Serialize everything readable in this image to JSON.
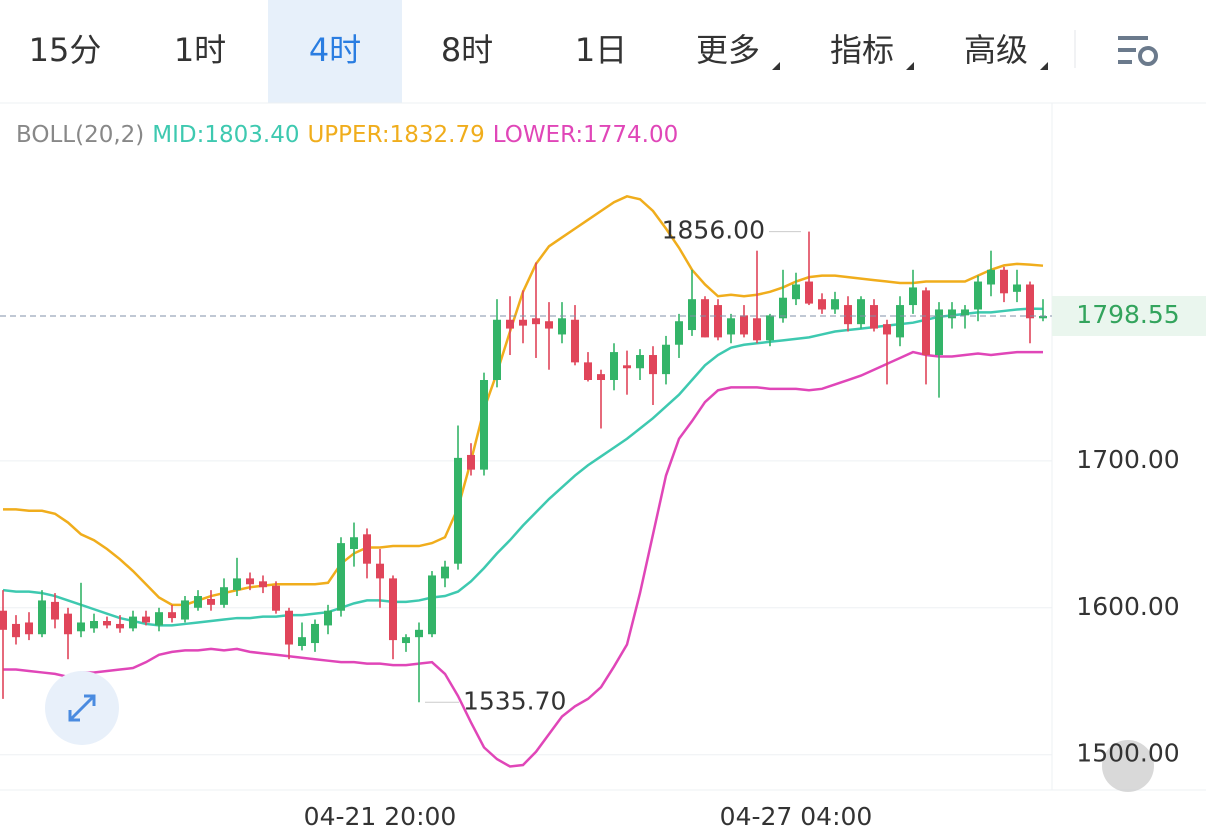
{
  "toolbar": {
    "tabs": [
      "15分",
      "1时",
      "4时",
      "8时",
      "1日",
      "更多",
      "指标",
      "高级"
    ],
    "active": 2
  },
  "chart_data": {
    "type": "candlestick",
    "indicator": "BOLL(20,2)",
    "up_color": "#33b468",
    "down_color": "#e0455a",
    "categories": [
      null,
      null,
      null,
      null,
      null,
      null,
      null,
      null,
      null,
      null,
      null,
      null,
      null,
      null,
      null,
      null,
      null,
      null,
      null,
      null,
      null,
      null,
      null,
      null,
      null,
      null,
      null,
      null,
      null,
      "04-21 20:00",
      null,
      null,
      null,
      null,
      null,
      null,
      null,
      null,
      null,
      null,
      null,
      null,
      null,
      null,
      null,
      null,
      null,
      null,
      null,
      null,
      null,
      null,
      null,
      null,
      null,
      null,
      null,
      null,
      null,
      null,
      null,
      "04-27 04:00",
      null,
      null,
      null,
      null,
      null,
      null,
      null,
      null,
      null,
      null,
      null,
      null,
      null,
      null,
      null,
      null,
      null,
      null,
      null
    ],
    "ohlc": [
      [
        1598,
        1612,
        1538,
        1585
      ],
      [
        1589,
        1595,
        1575,
        1580
      ],
      [
        1590,
        1597,
        1578,
        1582
      ],
      [
        1582,
        1612,
        1580,
        1605
      ],
      [
        1604,
        1610,
        1586,
        1592
      ],
      [
        1596,
        1600,
        1565,
        1582
      ],
      [
        1584,
        1617,
        1580,
        1590
      ],
      [
        1586,
        1596,
        1583,
        1591
      ],
      [
        1591,
        1594,
        1586,
        1588
      ],
      [
        1589,
        1595,
        1583,
        1586
      ],
      [
        1586,
        1598,
        1584,
        1594
      ],
      [
        1594,
        1598,
        1588,
        1590
      ],
      [
        1588,
        1600,
        1584,
        1597
      ],
      [
        1597,
        1602,
        1590,
        1593
      ],
      [
        1592,
        1608,
        1590,
        1605
      ],
      [
        1600,
        1612,
        1598,
        1608
      ],
      [
        1606,
        1612,
        1598,
        1602
      ],
      [
        1602,
        1620,
        1600,
        1614
      ],
      [
        1612,
        1634,
        1608,
        1620
      ],
      [
        1620,
        1624,
        1612,
        1616
      ],
      [
        1618,
        1622,
        1610,
        1614
      ],
      [
        1615,
        1618,
        1596,
        1598
      ],
      [
        1598,
        1600,
        1565,
        1575
      ],
      [
        1574,
        1590,
        1571,
        1580
      ],
      [
        1576,
        1592,
        1570,
        1589
      ],
      [
        1588,
        1602,
        1582,
        1598
      ],
      [
        1598,
        1648,
        1594,
        1644
      ],
      [
        1640,
        1658,
        1628,
        1648
      ],
      [
        1650,
        1654,
        1620,
        1630
      ],
      [
        1630,
        1640,
        1600,
        1620
      ],
      [
        1620,
        1622,
        1565,
        1578
      ],
      [
        1576,
        1582,
        1570,
        1580
      ],
      [
        1580,
        1590,
        1535.7,
        1585
      ],
      [
        1582,
        1625,
        1580,
        1622
      ],
      [
        1620,
        1632,
        1614,
        1628
      ],
      [
        1630,
        1724,
        1626,
        1702
      ],
      [
        1704,
        1712,
        1690,
        1694
      ],
      [
        1694,
        1760,
        1690,
        1755
      ],
      [
        1755,
        1810,
        1750,
        1796
      ],
      [
        1796,
        1812,
        1772,
        1790
      ],
      [
        1796,
        1816,
        1780,
        1792
      ],
      [
        1797,
        1835,
        1770,
        1793
      ],
      [
        1795,
        1808,
        1762,
        1790
      ],
      [
        1786,
        1808,
        1780,
        1797
      ],
      [
        1796,
        1806,
        1765,
        1767
      ],
      [
        1767,
        1774,
        1754,
        1755
      ],
      [
        1759,
        1762,
        1722,
        1755
      ],
      [
        1755,
        1780,
        1748,
        1774
      ],
      [
        1765,
        1775,
        1745,
        1763
      ],
      [
        1763,
        1776,
        1755,
        1772
      ],
      [
        1772,
        1778,
        1738,
        1759
      ],
      [
        1759,
        1785,
        1752,
        1779
      ],
      [
        1779,
        1800,
        1770,
        1795
      ],
      [
        1789,
        1830,
        1785,
        1810
      ],
      [
        1810,
        1812,
        1784,
        1784
      ],
      [
        1806,
        1810,
        1782,
        1784
      ],
      [
        1786,
        1800,
        1780,
        1797
      ],
      [
        1799,
        1806,
        1784,
        1786
      ],
      [
        1797,
        1843,
        1780,
        1782
      ],
      [
        1782,
        1800,
        1778,
        1799
      ],
      [
        1797,
        1830,
        1794,
        1811
      ],
      [
        1810,
        1828,
        1806,
        1820
      ],
      [
        1822,
        1856,
        1806,
        1807
      ],
      [
        1810,
        1814,
        1800,
        1803
      ],
      [
        1803,
        1815,
        1800,
        1810
      ],
      [
        1806,
        1812,
        1788,
        1793
      ],
      [
        1793,
        1812,
        1790,
        1810
      ],
      [
        1806,
        1810,
        1788,
        1790
      ],
      [
        1793,
        1796,
        1752,
        1786
      ],
      [
        1784,
        1812,
        1778,
        1806
      ],
      [
        1806,
        1830,
        1800,
        1818
      ],
      [
        1816,
        1818,
        1752,
        1772
      ],
      [
        1772,
        1808,
        1743,
        1803
      ],
      [
        1797,
        1808,
        1790,
        1803
      ],
      [
        1799,
        1806,
        1790,
        1803
      ],
      [
        1803,
        1826,
        1795,
        1822
      ],
      [
        1820,
        1843,
        1812,
        1830
      ],
      [
        1830,
        1832,
        1808,
        1814
      ],
      [
        1815,
        1830,
        1808,
        1820
      ],
      [
        1820,
        1822,
        1780,
        1797
      ],
      [
        1797,
        1810,
        1795,
        1798.55
      ]
    ],
    "series": [
      {
        "name": "MID:1803.40",
        "color": "#3ec9b0",
        "values": [
          1612,
          1611,
          1611,
          1610,
          1608,
          1605,
          1602,
          1599,
          1596,
          1593,
          1591,
          1589,
          1588,
          1588,
          1589,
          1590,
          1591,
          1592,
          1593,
          1593,
          1594,
          1594,
          1595,
          1595,
          1596,
          1597,
          1600,
          1603,
          1605,
          1605,
          1604,
          1604,
          1605,
          1607,
          1608,
          1611,
          1618,
          1627,
          1637,
          1646,
          1656,
          1665,
          1674,
          1682,
          1690,
          1697,
          1703,
          1709,
          1715,
          1722,
          1729,
          1737,
          1745,
          1755,
          1765,
          1772,
          1777,
          1779,
          1780,
          1781,
          1782,
          1783,
          1784,
          1786,
          1788,
          1789,
          1790,
          1791,
          1792,
          1793,
          1794,
          1796,
          1798,
          1799,
          1800,
          1801,
          1801,
          1802,
          1803,
          1803.6,
          1803.4
        ]
      },
      {
        "name": "UPPER:1832.79",
        "color": "#f0ad1c",
        "values": [
          1667,
          1667,
          1666,
          1666,
          1664,
          1658,
          1650,
          1646,
          1640,
          1633,
          1625,
          1616,
          1607,
          1602,
          1602,
          1605,
          1608,
          1610,
          1612,
          1614,
          1615,
          1616,
          1616,
          1616,
          1616,
          1617,
          1630,
          1637,
          1641,
          1641,
          1642,
          1642,
          1642,
          1644,
          1648,
          1668,
          1700,
          1735,
          1760,
          1788,
          1815,
          1834,
          1846,
          1852,
          1858,
          1864,
          1870,
          1876,
          1880,
          1878,
          1870,
          1858,
          1845,
          1830,
          1820,
          1812,
          1813,
          1812,
          1813,
          1815,
          1818,
          1822,
          1825,
          1826,
          1826,
          1825,
          1824,
          1823,
          1822,
          1821,
          1821,
          1822,
          1822,
          1822,
          1822,
          1826,
          1830,
          1833,
          1834,
          1833.5,
          1832.79
        ]
      },
      {
        "name": "LOWER:1774.00",
        "color": "#e046b8",
        "values": [
          1558,
          1558,
          1557,
          1556,
          1555,
          1553,
          1556,
          1556,
          1557,
          1558,
          1559,
          1563,
          1568,
          1570,
          1571,
          1571,
          1572,
          1571,
          1572,
          1570,
          1569,
          1568,
          1567,
          1566,
          1565,
          1564,
          1563,
          1563,
          1562,
          1562,
          1561,
          1561,
          1562,
          1563,
          1555,
          1540,
          1522,
          1505,
          1497,
          1492,
          1493,
          1502,
          1514,
          1526,
          1533,
          1538,
          1546,
          1560,
          1575,
          1610,
          1650,
          1690,
          1715,
          1727,
          1740,
          1748,
          1750,
          1750,
          1750,
          1749,
          1749,
          1749,
          1748,
          1749,
          1752,
          1755,
          1758,
          1762,
          1766,
          1770,
          1774,
          1772,
          1771,
          1771,
          1772,
          1773,
          1772,
          1773,
          1774,
          1774,
          1774
        ]
      }
    ],
    "ylim": [
      1476,
      1943.5
    ],
    "yticks": [
      {
        "value": 1500,
        "label": "1500.00"
      },
      {
        "value": 1600,
        "label": "1600.00"
      },
      {
        "value": 1700,
        "label": "1700.00"
      }
    ],
    "grid": true,
    "last_price": {
      "value": 1798.55,
      "label": "1798.55"
    },
    "annotations": [
      {
        "value": 1856,
        "label": "1856.00"
      },
      {
        "value": 1535.7,
        "label": "1535.70"
      }
    ]
  }
}
